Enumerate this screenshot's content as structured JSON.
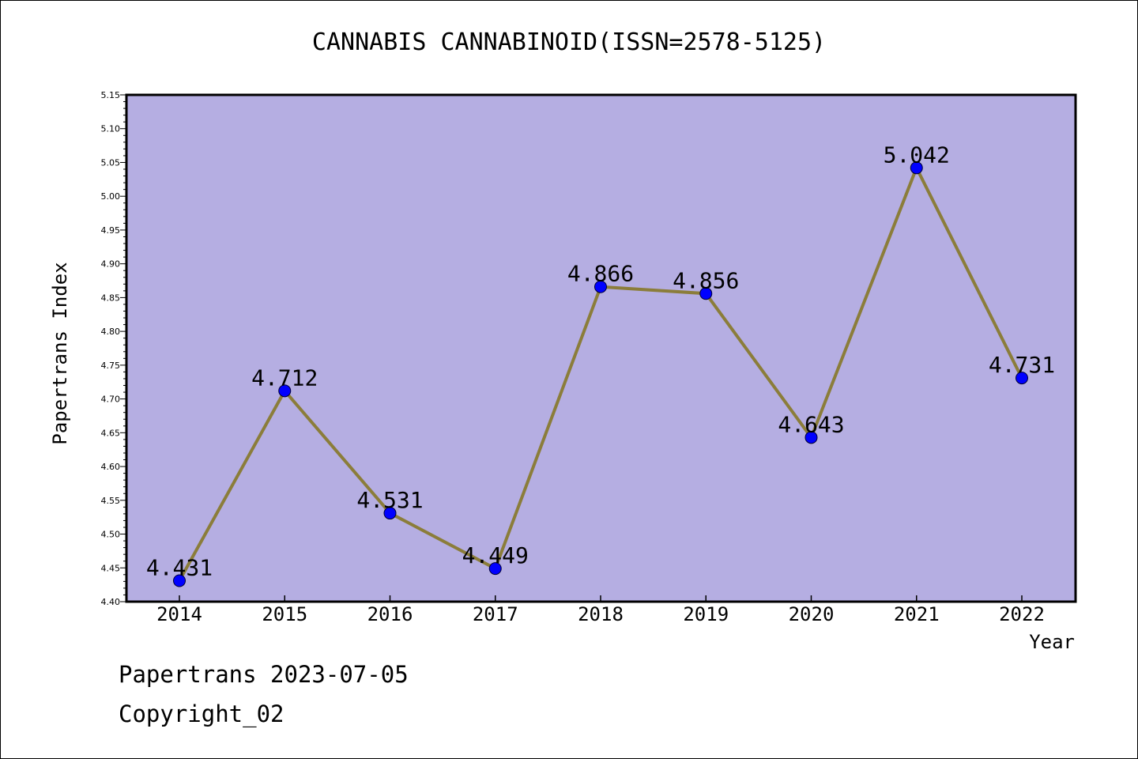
{
  "chart_data": {
    "type": "line",
    "title": "CANNABIS CANNABINOID(ISSN=2578-5125)",
    "xlabel": "Year",
    "ylabel": "Papertrans Index",
    "categories": [
      "2014",
      "2015",
      "2016",
      "2017",
      "2018",
      "2019",
      "2020",
      "2021",
      "2022"
    ],
    "values": [
      4.431,
      4.712,
      4.531,
      4.449,
      4.866,
      4.856,
      4.643,
      5.042,
      4.731
    ],
    "data_labels": [
      "4.431",
      "4.712",
      "4.531",
      "4.449",
      "4.866",
      "4.856",
      "4.643",
      "5.042",
      "4.731"
    ],
    "ylim": [
      4.4,
      5.15
    ],
    "yticks": [
      "4.40",
      "4.45",
      "4.50",
      "4.55",
      "4.60",
      "4.65",
      "4.70",
      "4.75",
      "4.80",
      "4.85",
      "4.90",
      "4.95",
      "5.00",
      "5.05",
      "5.10",
      "5.15"
    ],
    "grid": false,
    "colors": {
      "plot_background": "#b5aee2",
      "line": "#8b7d3a",
      "marker": "#0000ff"
    }
  },
  "footer": {
    "line1": "Papertrans 2023-07-05",
    "line2": "Copyright_02"
  }
}
